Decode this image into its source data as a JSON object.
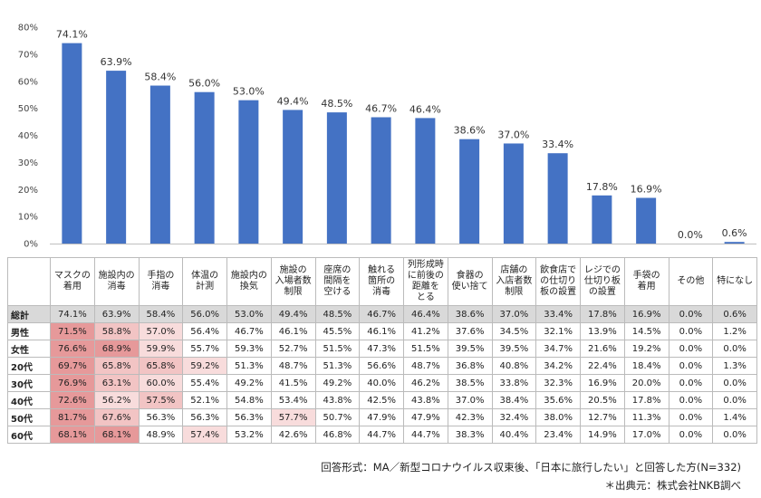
{
  "chart_data": {
    "type": "bar",
    "categories": [
      "マスクの\n着用",
      "施設内の\n消毒",
      "手指の\n消毒",
      "体温の\n計測",
      "施設内の\n換気",
      "施設の\n入場者数\n制限",
      "座席の\n間隔を\n空ける",
      "触れる\n箇所の\n消毒",
      "列形成時\nに前後の\n距離を\nとる",
      "食器の\n使い捨て",
      "店舗の\n入店者数\n制限",
      "飲食店で\nの仕切り\n板の設置",
      "レジでの\n仕切り板\nの設置",
      "手袋の\n着用",
      "その他",
      "特になし"
    ],
    "values": [
      74.1,
      63.9,
      58.4,
      56.0,
      53.0,
      49.4,
      48.5,
      46.7,
      46.4,
      38.6,
      37.0,
      33.4,
      17.8,
      16.9,
      0.0,
      0.6
    ],
    "value_labels": [
      "74.1%",
      "63.9%",
      "58.4%",
      "56.0%",
      "53.0%",
      "49.4%",
      "48.5%",
      "46.7%",
      "46.4%",
      "38.6%",
      "37.0%",
      "33.4%",
      "17.8%",
      "16.9%",
      "0.0%",
      "0.6%"
    ],
    "yticks": [
      "0%",
      "10%",
      "20%",
      "30%",
      "40%",
      "50%",
      "60%",
      "70%",
      "80%"
    ],
    "ylim": [
      0,
      80
    ],
    "bar_color": "#4472c4",
    "grid": false
  },
  "table": {
    "rows": [
      {
        "label": "総計",
        "total": true,
        "values": [
          "74.1%",
          "63.9%",
          "58.4%",
          "56.0%",
          "53.0%",
          "49.4%",
          "48.5%",
          "46.7%",
          "46.4%",
          "38.6%",
          "37.0%",
          "33.4%",
          "17.8%",
          "16.9%",
          "0.0%",
          "0.6%"
        ]
      },
      {
        "label": "男性",
        "values": [
          "71.5%",
          "58.8%",
          "57.0%",
          "56.4%",
          "46.7%",
          "46.1%",
          "45.5%",
          "46.1%",
          "41.2%",
          "37.6%",
          "34.5%",
          "32.1%",
          "13.9%",
          "14.5%",
          "0.0%",
          "1.2%"
        ]
      },
      {
        "label": "女性",
        "values": [
          "76.6%",
          "68.9%",
          "59.9%",
          "55.7%",
          "59.3%",
          "52.7%",
          "51.5%",
          "47.3%",
          "51.5%",
          "39.5%",
          "39.5%",
          "34.7%",
          "21.6%",
          "19.2%",
          "0.0%",
          "0.0%"
        ]
      },
      {
        "label": "20代",
        "values": [
          "69.7%",
          "65.8%",
          "65.8%",
          "59.2%",
          "51.3%",
          "48.7%",
          "51.3%",
          "56.6%",
          "48.7%",
          "36.8%",
          "40.8%",
          "34.2%",
          "22.4%",
          "18.4%",
          "0.0%",
          "1.3%"
        ]
      },
      {
        "label": "30代",
        "values": [
          "76.9%",
          "63.1%",
          "60.0%",
          "55.4%",
          "49.2%",
          "41.5%",
          "49.2%",
          "40.0%",
          "46.2%",
          "38.5%",
          "33.8%",
          "32.3%",
          "16.9%",
          "20.0%",
          "0.0%",
          "0.0%"
        ]
      },
      {
        "label": "40代",
        "values": [
          "72.6%",
          "56.2%",
          "57.5%",
          "52.1%",
          "54.8%",
          "53.4%",
          "43.8%",
          "42.5%",
          "43.8%",
          "37.0%",
          "38.4%",
          "35.6%",
          "20.5%",
          "17.8%",
          "0.0%",
          "0.0%"
        ]
      },
      {
        "label": "50代",
        "values": [
          "81.7%",
          "67.6%",
          "56.3%",
          "56.3%",
          "56.3%",
          "57.7%",
          "50.7%",
          "47.9%",
          "47.9%",
          "42.3%",
          "32.4%",
          "38.0%",
          "12.7%",
          "11.3%",
          "0.0%",
          "1.4%"
        ]
      },
      {
        "label": "60代",
        "values": [
          "68.1%",
          "68.1%",
          "48.9%",
          "57.4%",
          "53.2%",
          "42.6%",
          "46.8%",
          "44.7%",
          "44.7%",
          "38.3%",
          "40.4%",
          "23.4%",
          "14.9%",
          "17.0%",
          "0.0%",
          "0.0%"
        ]
      }
    ],
    "highlight_colors": {
      "strong": "#e6999a",
      "medium": "#f2c4c4",
      "light": "#f8dcdc"
    },
    "highlights": [
      {
        "row": 1,
        "col": 0,
        "level": "strong"
      },
      {
        "row": 1,
        "col": 1,
        "level": "medium"
      },
      {
        "row": 1,
        "col": 2,
        "level": "light"
      },
      {
        "row": 2,
        "col": 0,
        "level": "strong"
      },
      {
        "row": 2,
        "col": 1,
        "level": "strong"
      },
      {
        "row": 2,
        "col": 2,
        "level": "light"
      },
      {
        "row": 3,
        "col": 0,
        "level": "strong"
      },
      {
        "row": 3,
        "col": 1,
        "level": "medium"
      },
      {
        "row": 3,
        "col": 2,
        "level": "medium"
      },
      {
        "row": 3,
        "col": 3,
        "level": "light"
      },
      {
        "row": 4,
        "col": 0,
        "level": "strong"
      },
      {
        "row": 4,
        "col": 1,
        "level": "medium"
      },
      {
        "row": 4,
        "col": 2,
        "level": "light"
      },
      {
        "row": 5,
        "col": 0,
        "level": "strong"
      },
      {
        "row": 5,
        "col": 1,
        "level": "light"
      },
      {
        "row": 5,
        "col": 2,
        "level": "medium"
      },
      {
        "row": 6,
        "col": 0,
        "level": "strong"
      },
      {
        "row": 6,
        "col": 1,
        "level": "medium"
      },
      {
        "row": 6,
        "col": 5,
        "level": "light"
      },
      {
        "row": 7,
        "col": 0,
        "level": "strong"
      },
      {
        "row": 7,
        "col": 1,
        "level": "strong"
      },
      {
        "row": 7,
        "col": 3,
        "level": "light"
      }
    ]
  },
  "footer": {
    "line1": "回答形式：MA／新型コロナウイルス収束後、「日本に旅行したい」と回答した方(N=332)",
    "line2": "＊出典元：株式会社NKB調べ"
  }
}
